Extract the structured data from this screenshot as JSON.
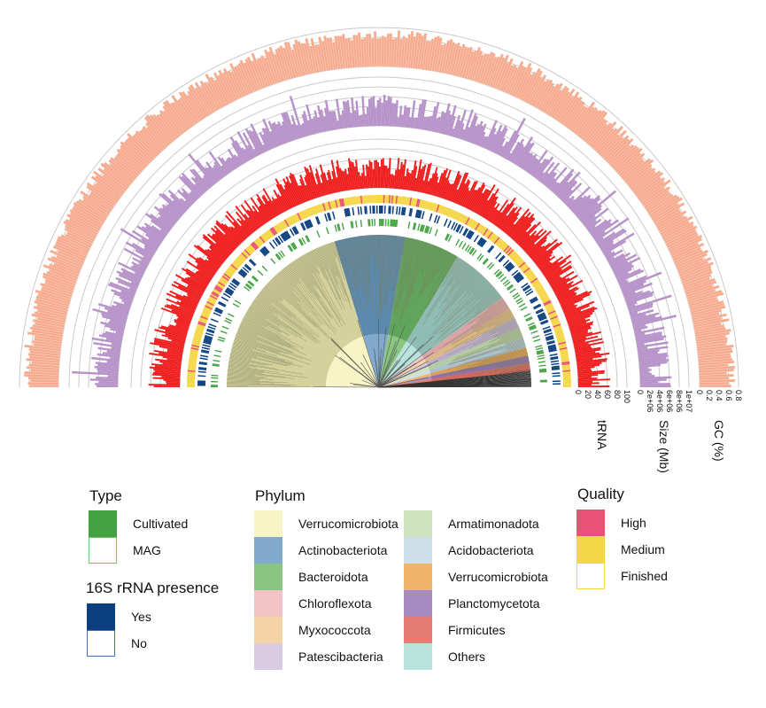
{
  "rings": {
    "trna": {
      "label": "tRNA",
      "ticks": [
        "0",
        "20",
        "40",
        "60",
        "80",
        "100"
      ],
      "color": "#f01d1d"
    },
    "size": {
      "label": "Size (Mb)",
      "ticks": [
        "0",
        "2e+06",
        "4e+06",
        "6e+06",
        "8e+06",
        "1e+07"
      ],
      "color": "#b793c9"
    },
    "gc": {
      "label": "GC (%)",
      "ticks": [
        "0",
        "0.2",
        "0.4",
        "0.6",
        "0.8"
      ],
      "color": "#f6ab8e"
    }
  },
  "legend": {
    "type": {
      "title": "Type",
      "items": [
        {
          "label": "Cultivated",
          "fill": "#43a343",
          "border": "#43a343"
        },
        {
          "label": "MAG",
          "fill": "#ffffff",
          "border": "#6cbf6c"
        }
      ]
    },
    "rrna": {
      "title": "16S rRNA presence",
      "items": [
        {
          "label": "Yes",
          "fill": "#0b3f80",
          "border": "#0b3f80"
        },
        {
          "label": "No",
          "fill": "#ffffff",
          "border": "#3f6fa8"
        }
      ]
    },
    "phylum": {
      "title": "Phylum",
      "items": [
        {
          "label": "Verrucomicrobiota",
          "fill": "#f7f5c6"
        },
        {
          "label": "Actinobacteriota",
          "fill": "#81aacd"
        },
        {
          "label": "Bacteroidota",
          "fill": "#8ac581"
        },
        {
          "label": "Chloroflexota",
          "fill": "#f2c4c6"
        },
        {
          "label": "Myxococcota",
          "fill": "#f4d4a6"
        },
        {
          "label": "Patescibacteria",
          "fill": "#d9cbe3"
        },
        {
          "label": "Armatimonadota",
          "fill": "#cfe3be"
        },
        {
          "label": "Acidobacteriota",
          "fill": "#cde0e8"
        },
        {
          "label": "Verrucomicrobiota",
          "fill": "#efb56b"
        },
        {
          "label": "Planctomycetota",
          "fill": "#a58bbf"
        },
        {
          "label": "Firmicutes",
          "fill": "#e47e72"
        },
        {
          "label": "Others",
          "fill": "#b9e4dd"
        }
      ]
    },
    "quality": {
      "title": "Quality",
      "items": [
        {
          "label": "High",
          "fill": "#e95275",
          "border": "#e95275"
        },
        {
          "label": "Medium",
          "fill": "#f5d646",
          "border": "#f5d646"
        },
        {
          "label": "Finished",
          "fill": "#ffffff",
          "border": "#f5d646"
        }
      ]
    }
  }
}
